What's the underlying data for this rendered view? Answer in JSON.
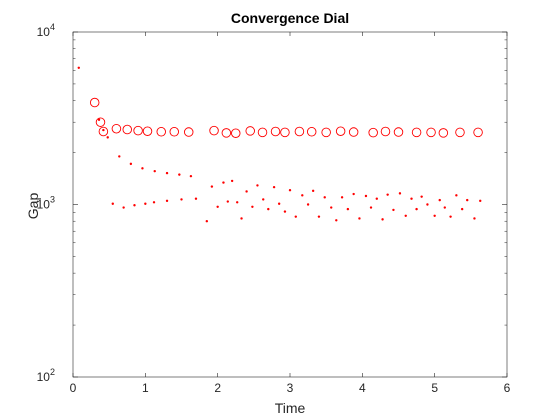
{
  "chart_data": {
    "type": "scatter",
    "title": "Convergence Dial",
    "xlabel": "Time",
    "ylabel": "Gap",
    "xlim": [
      0,
      6
    ],
    "ylim": [
      100,
      10000
    ],
    "yscale": "log",
    "grid": false,
    "box": true,
    "x_ticks": [
      0,
      1,
      2,
      3,
      4,
      5,
      6
    ],
    "x_tick_labels": [
      "0",
      "1",
      "2",
      "3",
      "4",
      "5",
      "6"
    ],
    "y_ticks": [
      100,
      1000,
      10000
    ],
    "y_tick_labels": [
      {
        "base": "10",
        "exp": "2"
      },
      {
        "base": "10",
        "exp": "3"
      },
      {
        "base": "10",
        "exp": "4"
      }
    ],
    "color": "#ff0000",
    "series": [
      {
        "marker": "circle",
        "x": [
          0.3,
          0.38,
          0.42,
          0.6,
          0.75,
          0.9,
          1.03,
          1.22,
          1.4,
          1.6,
          1.95,
          2.12,
          2.25,
          2.45,
          2.62,
          2.8,
          2.93,
          3.13,
          3.3,
          3.5,
          3.7,
          3.88,
          4.15,
          4.32,
          4.5,
          4.75,
          4.95,
          5.12,
          5.35,
          5.6
        ],
        "y": [
          3900,
          3000,
          2650,
          2750,
          2720,
          2680,
          2660,
          2640,
          2640,
          2630,
          2680,
          2600,
          2590,
          2670,
          2620,
          2650,
          2620,
          2650,
          2640,
          2620,
          2660,
          2630,
          2610,
          2650,
          2630,
          2620,
          2620,
          2600,
          2620,
          2620
        ]
      },
      {
        "marker": "point",
        "x": [
          0.08,
          0.36,
          0.42,
          0.48,
          0.64,
          0.8,
          0.96,
          1.13,
          1.3,
          1.47,
          1.63,
          0.55,
          0.7,
          0.85,
          1.0,
          1.12,
          1.3,
          1.5,
          1.7,
          1.85,
          1.92,
          2.0,
          2.08,
          2.14,
          2.2,
          2.27,
          2.33,
          2.4,
          2.48,
          2.55,
          2.63,
          2.7,
          2.78,
          2.85,
          2.93,
          3.0,
          3.08,
          3.17,
          3.25,
          3.32,
          3.4,
          3.48,
          3.57,
          3.64,
          3.72,
          3.8,
          3.88,
          3.96,
          4.05,
          4.12,
          4.2,
          4.28,
          4.35,
          4.43,
          4.52,
          4.6,
          4.68,
          4.75,
          4.82,
          4.9,
          5.0,
          5.07,
          5.14,
          5.22,
          5.3,
          5.38,
          5.45,
          5.55,
          5.63
        ],
        "y": [
          6200,
          3100,
          2700,
          2450,
          1900,
          1720,
          1620,
          1560,
          1520,
          1490,
          1460,
          1010,
          960,
          990,
          1010,
          1030,
          1050,
          1070,
          1080,
          800,
          1270,
          970,
          1340,
          1040,
          1370,
          1030,
          830,
          1190,
          970,
          1290,
          1070,
          940,
          1260,
          1010,
          910,
          1210,
          850,
          1130,
          1000,
          1200,
          850,
          1100,
          960,
          810,
          1100,
          940,
          1150,
          830,
          1120,
          960,
          1080,
          820,
          1140,
          930,
          1160,
          860,
          1080,
          940,
          1110,
          1000,
          860,
          1060,
          960,
          850,
          1130,
          940,
          1060,
          830,
          1050
        ]
      }
    ]
  }
}
